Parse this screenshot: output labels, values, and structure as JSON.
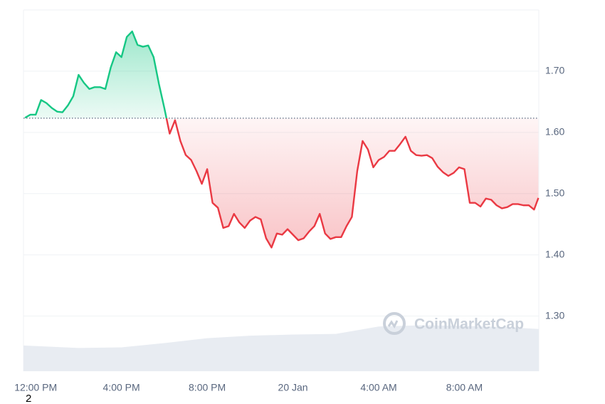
{
  "chart_data": {
    "type": "area",
    "x": [
      -0.5,
      -0.25,
      0,
      0.25,
      0.5,
      0.75,
      1,
      1.25,
      1.5,
      1.75,
      2,
      2.25,
      2.5,
      2.75,
      3,
      3.25,
      3.5,
      3.75,
      4,
      4.25,
      4.5,
      4.75,
      5,
      5.25,
      5.5,
      5.75,
      6,
      6.25,
      6.5,
      6.75,
      7,
      7.25,
      7.5,
      7.75,
      8,
      8.25,
      8.5,
      8.75,
      9,
      9.25,
      9.5,
      9.75,
      10,
      10.25,
      10.5,
      10.75,
      11,
      11.25,
      11.5,
      11.75,
      12,
      12.25,
      12.5,
      12.75,
      13,
      13.25,
      13.5,
      13.75,
      14,
      14.25,
      14.5,
      14.75,
      15,
      15.25,
      15.5,
      15.75,
      16,
      16.25,
      16.5,
      16.75,
      17,
      17.25,
      17.5,
      17.75,
      18,
      18.25,
      18.5,
      18.75,
      19,
      19.25,
      19.5,
      19.75,
      20,
      20.25,
      20.5,
      20.75,
      21,
      21.25,
      21.5,
      21.75,
      22,
      22.25,
      22.5,
      22.75,
      23,
      23.25,
      23.45
    ],
    "series": [
      {
        "values": [
          1.624,
          1.629,
          1.629,
          1.653,
          1.648,
          1.64,
          1.634,
          1.633,
          1.644,
          1.659,
          1.694,
          1.681,
          1.671,
          1.674,
          1.674,
          1.671,
          1.706,
          1.731,
          1.723,
          1.756,
          1.765,
          1.743,
          1.74,
          1.742,
          1.723,
          1.679,
          1.64,
          1.598,
          1.62,
          1.586,
          1.563,
          1.555,
          1.537,
          1.516,
          1.54,
          1.485,
          1.477,
          1.444,
          1.447,
          1.467,
          1.453,
          1.444,
          1.456,
          1.462,
          1.458,
          1.427,
          1.412,
          1.435,
          1.433,
          1.442,
          1.433,
          1.424,
          1.427,
          1.438,
          1.447,
          1.467,
          1.435,
          1.426,
          1.429,
          1.429,
          1.447,
          1.462,
          1.537,
          1.586,
          1.572,
          1.543,
          1.555,
          1.56,
          1.57,
          1.57,
          1.581,
          1.593,
          1.57,
          1.563,
          1.562,
          1.563,
          1.558,
          1.544,
          1.535,
          1.529,
          1.534,
          1.543,
          1.54,
          1.485,
          1.485,
          1.479,
          1.492,
          1.49,
          1.481,
          1.476,
          1.478,
          1.483,
          1.483,
          1.481,
          1.481,
          1.474,
          1.493
        ]
      }
    ],
    "baseline": 1.6233,
    "up_color": "#16c784",
    "down_color": "#ea3943",
    "volume": {
      "x": [
        -0.57,
        2,
        4,
        6,
        8,
        10,
        12,
        14,
        16,
        18,
        20,
        22,
        23.47
      ],
      "values": [
        1.252,
        1.248,
        1.249,
        1.256,
        1.264,
        1.268,
        1.27,
        1.271,
        1.283,
        1.285,
        1.284,
        1.282,
        1.279
      ],
      "color": "#e8ecf2"
    },
    "xlim": [
      -0.57,
      23.47
    ],
    "xticks": [
      {
        "value": 0,
        "label": "12:00 PM"
      },
      {
        "value": 4,
        "label": "4:00 PM"
      },
      {
        "value": 8,
        "label": "8:00 PM"
      },
      {
        "value": 12,
        "label": "20 Jan"
      },
      {
        "value": 16,
        "label": "4:00 AM"
      },
      {
        "value": 20,
        "label": "8:00 AM"
      }
    ],
    "ylim": [
      1.21,
      1.8
    ],
    "yticks": [
      {
        "value": 1.3,
        "label": "1.30"
      },
      {
        "value": 1.4,
        "label": "1.40"
      },
      {
        "value": 1.5,
        "label": "1.50"
      },
      {
        "value": 1.6,
        "label": "1.60"
      },
      {
        "value": 1.7,
        "label": "1.70"
      }
    ],
    "grid": true,
    "watermark": "CoinMarketCap"
  },
  "corner_text": "2"
}
